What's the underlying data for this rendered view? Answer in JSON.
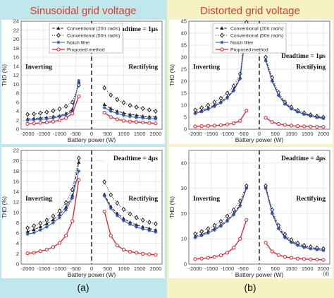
{
  "headers": {
    "left": "Sinusoidal grid voltage",
    "right": "Distorted grid voltage",
    "left_label": "(a)",
    "right_label": "(b)",
    "left_bg": "#bfe7ec",
    "right_bg": "#f6f2c4",
    "title_color": "#d63b2f"
  },
  "legend": {
    "items": [
      {
        "label": "Conventional (20π rad/s)",
        "color": "#222222",
        "marker": "triangle",
        "dash": "4,2"
      },
      {
        "label": "Conventional (50π rad/s)",
        "color": "#222222",
        "marker": "diamond",
        "dash": "1,2"
      },
      {
        "label": "Notch filter",
        "color": "#2e4fb5",
        "marker": "star",
        "dash": ""
      },
      {
        "label": "Proposed method",
        "color": "#e0202a",
        "marker": "circle",
        "dash": ""
      }
    ]
  },
  "chart_data": [
    {
      "type": "line",
      "panel": "top-left",
      "annotation_deadtime": "Deadtime = 1μs",
      "annotation_left": "Inverting",
      "annotation_right": "Rectifying",
      "ylabel": "THD (%)",
      "xlabel": "Battery power (W)",
      "xlim": [
        -2200,
        2200
      ],
      "ylim": [
        0,
        24
      ],
      "xticks": [
        "-2000",
        "-1500",
        "-1000",
        "-500",
        "0",
        "500",
        "1000",
        "1500",
        "2000"
      ],
      "yticks": [
        "0",
        "2",
        "4",
        "6",
        "8",
        "10",
        "12",
        "14",
        "16",
        "18",
        "20",
        "22",
        "24"
      ],
      "x": [
        -2000,
        -1800,
        -1600,
        -1400,
        -1200,
        -1000,
        -800,
        -600,
        -400,
        400,
        600,
        800,
        1000,
        1200,
        1400,
        1600,
        1800,
        2000
      ],
      "series": [
        {
          "name": "Conventional (20π rad/s)",
          "values": [
            2.3,
            2.4,
            2.5,
            2.6,
            2.8,
            3.0,
            3.5,
            4.4,
            10.5,
            5.5,
            4.6,
            4.0,
            3.6,
            3.3,
            3.1,
            2.9,
            2.8,
            2.7
          ]
        },
        {
          "name": "Conventional (50π rad/s)",
          "values": [
            3.3,
            3.4,
            3.6,
            3.8,
            4.1,
            4.5,
            5.1,
            6.0,
            9.8,
            9.2,
            7.6,
            6.6,
            5.9,
            5.3,
            4.9,
            4.6,
            4.3,
            4.0
          ]
        },
        {
          "name": "Notch filter",
          "values": [
            2.0,
            2.1,
            2.2,
            2.3,
            2.5,
            2.8,
            3.2,
            4.0,
            10.8,
            4.8,
            4.0,
            3.5,
            3.1,
            2.8,
            2.6,
            2.5,
            2.4,
            2.3
          ]
        },
        {
          "name": "Proposed method",
          "values": [
            1.2,
            1.3,
            1.4,
            1.5,
            1.7,
            2.0,
            2.5,
            3.5,
            7.3,
            3.7,
            2.7,
            2.2,
            1.9,
            1.7,
            1.6,
            1.5,
            1.4,
            1.3
          ]
        }
      ]
    },
    {
      "type": "line",
      "panel": "bottom-left",
      "annotation_deadtime": "Deadtime = 4μs",
      "annotation_left": "Inverting",
      "annotation_right": "Rectifying",
      "ylabel": "THD (%)",
      "xlabel": "Battery power (W)",
      "xlim": [
        -2200,
        2200
      ],
      "ylim": [
        0,
        22
      ],
      "xticks": [
        "-2000",
        "-1500",
        "-1000",
        "-500",
        "0",
        "500",
        "1000",
        "1500",
        "2000"
      ],
      "yticks": [
        "0",
        "2",
        "4",
        "6",
        "8",
        "10",
        "12",
        "14",
        "16",
        "18",
        "20",
        "22"
      ],
      "x": [
        -2000,
        -1800,
        -1600,
        -1400,
        -1200,
        -1000,
        -800,
        -600,
        -400,
        400,
        600,
        800,
        1000,
        1200,
        1400,
        1600,
        1800,
        2000
      ],
      "series": [
        {
          "name": "Conventional (20π rad/s)",
          "values": [
            6.3,
            6.7,
            7.2,
            7.8,
            8.6,
            9.6,
            11.0,
            13.3,
            19.7,
            13.5,
            11.2,
            9.8,
            8.8,
            8.1,
            7.6,
            7.2,
            6.9,
            6.6
          ]
        },
        {
          "name": "Conventional (50π rad/s)",
          "values": [
            7.0,
            7.4,
            7.9,
            8.5,
            9.3,
            10.3,
            11.9,
            14.4,
            20.5,
            15.9,
            13.4,
            11.8,
            10.6,
            9.7,
            9.0,
            8.5,
            8.1,
            7.8
          ]
        },
        {
          "name": "Notch filter",
          "values": [
            5.8,
            6.1,
            6.6,
            7.2,
            8.0,
            9.0,
            10.5,
            12.8,
            18.0,
            13.2,
            10.8,
            9.4,
            8.4,
            7.7,
            7.2,
            6.8,
            6.5,
            6.2
          ]
        },
        {
          "name": "Proposed method",
          "values": [
            2.1,
            2.2,
            2.5,
            2.8,
            3.3,
            4.1,
            5.5,
            8.3,
            16.3,
            10.2,
            5.5,
            3.6,
            2.8,
            2.4,
            2.2,
            2.0,
            1.9,
            1.8
          ]
        }
      ]
    },
    {
      "type": "line",
      "panel": "top-right",
      "annotation_deadtime": "Deadtime = 1μs",
      "annotation_left": "Inverting",
      "annotation_right": "Rectifying",
      "ylabel": "THD (%)",
      "xlabel": "Battery power (W)",
      "xlim": [
        -2200,
        2200
      ],
      "ylim": [
        0,
        45
      ],
      "xticks": [
        "-2000",
        "-1500",
        "-1000",
        "-500",
        "0",
        "500",
        "1000",
        "1500",
        "2000"
      ],
      "yticks": [
        "0",
        "5",
        "10",
        "15",
        "20",
        "25",
        "30",
        "35",
        "40",
        "45"
      ],
      "x": [
        -2000,
        -1800,
        -1600,
        -1400,
        -1200,
        -1000,
        -800,
        -600,
        -400,
        200,
        400,
        600,
        800,
        1000,
        1200,
        1400,
        1600,
        1800,
        2000
      ],
      "series": [
        {
          "name": "Conventional (20π rad/s)",
          "values": [
            7.0,
            7.8,
            8.8,
            10.0,
            11.5,
            13.5,
            16.5,
            21.5,
            43.5,
            29.0,
            20.5,
            14.5,
            10.8,
            8.8,
            7.5,
            6.5,
            5.8,
            5.2,
            4.8
          ]
        },
        {
          "name": "Conventional (50π rad/s)",
          "values": [
            8.0,
            8.9,
            10.0,
            11.3,
            12.9,
            15.0,
            18.0,
            23.0,
            44.5,
            30.0,
            21.5,
            15.3,
            11.3,
            9.2,
            7.8,
            6.8,
            6.0,
            5.4,
            5.0
          ]
        },
        {
          "name": "Notch filter",
          "values": [
            6.5,
            7.3,
            8.3,
            9.5,
            11.0,
            13.0,
            16.0,
            21.0,
            42.5,
            28.5,
            20.0,
            14.0,
            10.5,
            8.5,
            7.2,
            6.2,
            5.5,
            4.9,
            4.5
          ]
        },
        {
          "name": "Proposed method",
          "values": [
            1.2,
            1.3,
            1.4,
            1.5,
            1.7,
            2.0,
            2.5,
            3.5,
            7.8,
            4.8,
            3.0,
            2.2,
            1.8,
            1.5,
            1.3,
            1.2,
            1.1,
            1.0,
            1.0
          ]
        }
      ]
    },
    {
      "type": "line",
      "panel": "bottom-right",
      "annotation_deadtime": "Deadtime = 4μs",
      "annotation_left": "Inverting",
      "annotation_right": "Rectifying",
      "ylabel": "THD (%)",
      "xlabel": "Battery power (W)",
      "xlim": [
        -2200,
        2200
      ],
      "ylim": [
        0,
        45
      ],
      "xticks": [
        "-2000",
        "-1500",
        "-1000",
        "-500",
        "0",
        "500",
        "1000",
        "1500",
        "2000"
      ],
      "yticks": [
        "0",
        "10",
        "20",
        "30",
        "40"
      ],
      "x": [
        -2000,
        -1800,
        -1600,
        -1400,
        -1200,
        -1000,
        -800,
        -600,
        -400,
        200,
        400,
        600,
        800,
        1000,
        1200,
        1400,
        1600,
        1800,
        2000
      ],
      "series": [
        {
          "name": "Conventional (20π rad/s)",
          "values": [
            11.0,
            11.8,
            12.8,
            14.0,
            15.5,
            17.5,
            20.0,
            23.5,
            30.5,
            30.5,
            20.5,
            14.5,
            11.0,
            9.0,
            7.8,
            7.0,
            6.5,
            6.1,
            5.8
          ]
        },
        {
          "name": "Conventional (50π rad/s)",
          "values": [
            12.0,
            12.9,
            14.0,
            15.3,
            16.9,
            19.0,
            21.5,
            25.0,
            31.0,
            31.0,
            21.5,
            15.3,
            11.8,
            9.6,
            8.3,
            7.4,
            6.8,
            6.4,
            6.1
          ]
        },
        {
          "name": "Notch filter",
          "values": [
            10.5,
            11.3,
            12.3,
            13.5,
            15.0,
            17.0,
            19.5,
            23.0,
            30.0,
            30.0,
            20.0,
            14.0,
            10.5,
            8.6,
            7.4,
            6.6,
            6.1,
            5.7,
            5.4
          ]
        },
        {
          "name": "Proposed method",
          "values": [
            2.0,
            2.2,
            2.5,
            2.9,
            3.5,
            4.5,
            6.5,
            10.0,
            17.5,
            8.5,
            5.0,
            3.6,
            2.9,
            2.5,
            2.2,
            2.0,
            1.9,
            1.8,
            1.7
          ]
        }
      ],
      "corner_label": "(d)"
    }
  ]
}
